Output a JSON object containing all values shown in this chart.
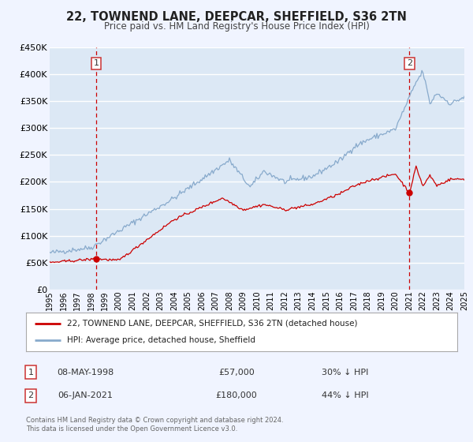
{
  "title": "22, TOWNEND LANE, DEEPCAR, SHEFFIELD, S36 2TN",
  "subtitle": "Price paid vs. HM Land Registry's House Price Index (HPI)",
  "bg_color": "#f0f4ff",
  "plot_bg_color": "#dce8f5",
  "grid_color": "#ffffff",
  "xlim": [
    1995,
    2025
  ],
  "ylim": [
    0,
    450000
  ],
  "yticks": [
    0,
    50000,
    100000,
    150000,
    200000,
    250000,
    300000,
    350000,
    400000,
    450000
  ],
  "ytick_labels": [
    "£0",
    "£50K",
    "£100K",
    "£150K",
    "£200K",
    "£250K",
    "£300K",
    "£350K",
    "£400K",
    "£450K"
  ],
  "sale1_date": 1998.36,
  "sale1_price": 57000,
  "sale2_date": 2021.02,
  "sale2_price": 180000,
  "sale1_label": "1",
  "sale2_label": "2",
  "legend_line1": "22, TOWNEND LANE, DEEPCAR, SHEFFIELD, S36 2TN (detached house)",
  "legend_line2": "HPI: Average price, detached house, Sheffield",
  "table_row1": [
    "1",
    "08-MAY-1998",
    "£57,000",
    "30% ↓ HPI"
  ],
  "table_row2": [
    "2",
    "06-JAN-2021",
    "£180,000",
    "44% ↓ HPI"
  ],
  "footnote": "Contains HM Land Registry data © Crown copyright and database right 2024.\nThis data is licensed under the Open Government Licence v3.0.",
  "red_color": "#cc0000",
  "hpi_color": "#88aacc"
}
